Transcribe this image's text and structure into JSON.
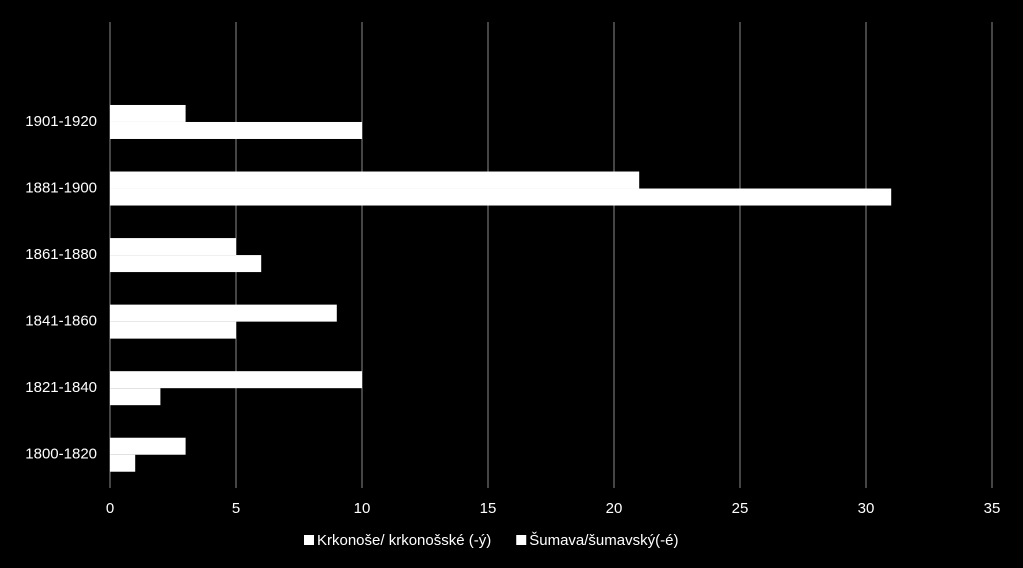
{
  "chart_data": {
    "type": "hbar",
    "categories": [
      "1800-1820",
      "1821-1840",
      "1841-1860",
      "1861-1880",
      "1881-1900",
      "1901-1920"
    ],
    "series": [
      {
        "name": "Krkonoše/ krkonošské (-ý)",
        "color": "#ffffff",
        "values": [
          1,
          2,
          5,
          6,
          31,
          10
        ]
      },
      {
        "name": "Šumava/šumavský(-é)",
        "color": "#ffffff",
        "values": [
          3,
          10,
          9,
          5,
          21,
          3
        ]
      }
    ],
    "xlim": [
      0,
      35
    ],
    "xticks": [
      0,
      5,
      10,
      15,
      20,
      25,
      30,
      35
    ],
    "grid": true,
    "legend": "bottom"
  }
}
